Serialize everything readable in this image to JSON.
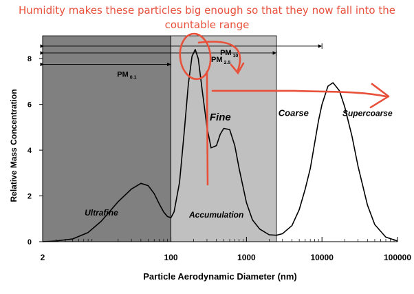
{
  "annotation": {
    "line1": "Humidity makes these particles big enough so that they now fall into the",
    "line2": "countable range",
    "color": "#e8503a"
  },
  "chart_data": {
    "type": "line",
    "xscale": "log",
    "xlim": [
      2,
      100000
    ],
    "ylim": [
      0,
      9
    ],
    "xlabel": "Particle Aerodynamic Diameter (nm)",
    "ylabel": "Relative Mass Concentration",
    "x_ticks": [
      {
        "value": 2,
        "label": "2"
      },
      {
        "value": 100,
        "label": "100"
      },
      {
        "value": 1000,
        "label": "1000"
      },
      {
        "value": 10000,
        "label": "10000"
      },
      {
        "value": 100000,
        "label": "100000"
      }
    ],
    "y_ticks": [
      {
        "value": 0,
        "label": "0"
      },
      {
        "value": 2,
        "label": "2"
      },
      {
        "value": 4,
        "label": "4"
      },
      {
        "value": 6,
        "label": "6"
      },
      {
        "value": 8,
        "label": "8"
      }
    ],
    "regions": [
      {
        "name": "Ultrafine",
        "x_from": 2,
        "x_to": 100,
        "color": "#808080"
      },
      {
        "name": "Accumulation",
        "x_from": 100,
        "x_to": 2500,
        "color": "#c0c0c0"
      }
    ],
    "region_labels": [
      {
        "text": "Ultrafine",
        "x": 12,
        "y": 1.15
      },
      {
        "text": "Accumulation",
        "x": 400,
        "y": 1.05
      },
      {
        "text": "Fine",
        "x": 450,
        "y": 5.3
      },
      {
        "text": "Coarse",
        "x": 4200,
        "y": 5.5
      },
      {
        "text": "Supercoarse",
        "x": 40000,
        "y": 5.5
      }
    ],
    "size_ranges": [
      {
        "label": "PM",
        "sub": "0.1",
        "x_from": 2,
        "x_to": 100,
        "y": 7.75
      },
      {
        "label": "PM",
        "sub": "2.5",
        "x_from": 2,
        "x_to": 2500,
        "y": 8.25
      },
      {
        "label": "PM",
        "sub": "10",
        "x_from": 2,
        "x_to": 10000,
        "y": 8.55
      }
    ],
    "series": [
      {
        "color": "#000000",
        "x": [
          2,
          3,
          5,
          8,
          12,
          20,
          30,
          40,
          50,
          60,
          70,
          80,
          90,
          100,
          110,
          130,
          150,
          170,
          190,
          210,
          230,
          260,
          300,
          340,
          400,
          450,
          500,
          600,
          700,
          800,
          1000,
          1200,
          1500,
          2000,
          2500,
          3000,
          4000,
          5000,
          6000,
          7000,
          8000,
          9000,
          10000,
          12000,
          14000,
          17000,
          20000,
          25000,
          30000,
          40000,
          50000,
          70000,
          100000
        ],
        "y": [
          0.0,
          0.03,
          0.12,
          0.4,
          0.9,
          1.75,
          2.3,
          2.55,
          2.45,
          2.1,
          1.65,
          1.3,
          1.1,
          1.05,
          1.3,
          2.6,
          4.8,
          6.9,
          8.1,
          8.4,
          8.0,
          6.6,
          5.0,
          4.1,
          4.2,
          4.7,
          4.95,
          4.9,
          4.2,
          3.2,
          1.7,
          0.95,
          0.55,
          0.3,
          0.28,
          0.35,
          0.7,
          1.4,
          2.3,
          3.2,
          4.3,
          5.3,
          6.0,
          6.8,
          6.95,
          6.6,
          5.9,
          4.6,
          3.3,
          1.6,
          0.75,
          0.2,
          0.03
        ]
      }
    ]
  }
}
